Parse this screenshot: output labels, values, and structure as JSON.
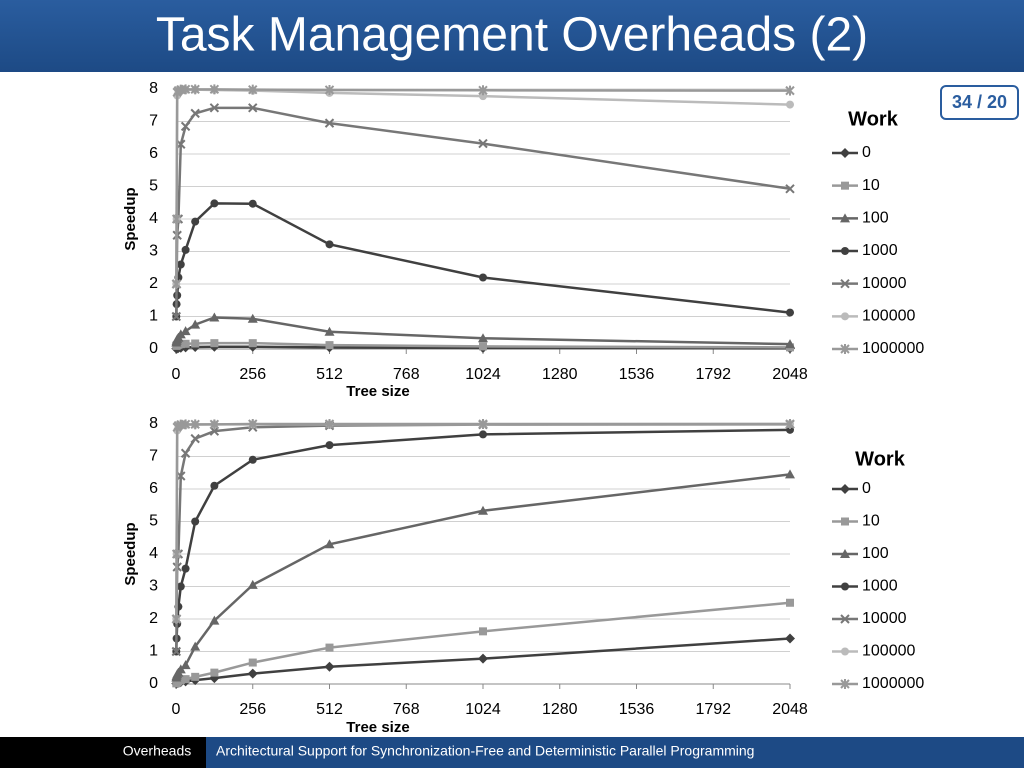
{
  "slide": {
    "title": "Task Management Overheads (2)",
    "page": "34 / 20",
    "footer_section": "Overheads",
    "footer_text": "Architectural Support for Synchronization-Free and Deterministic Parallel Programming"
  },
  "chart_data": [
    {
      "type": "line",
      "x_label": "Tree size",
      "y_label": "Speedup",
      "legend_title": "Work",
      "legend": "right",
      "grid": true,
      "x": [
        1,
        2,
        4,
        8,
        16,
        32,
        64,
        128,
        256,
        512,
        1024,
        2048
      ],
      "xlim": [
        0,
        2048
      ],
      "xticks": [
        0,
        256,
        512,
        768,
        1024,
        1280,
        1536,
        1792,
        2048
      ],
      "ylim": [
        0,
        8
      ],
      "yticks": [
        0,
        1,
        2,
        3,
        4,
        5,
        6,
        7,
        8
      ],
      "series": [
        {
          "name": "0",
          "color": "#404040",
          "marker": "diamond",
          "values": [
            0.01,
            0.01,
            0.02,
            0.03,
            0.04,
            0.05,
            0.06,
            0.07,
            0.07,
            0.05,
            0.03,
            0.02
          ]
        },
        {
          "name": "10",
          "color": "#999999",
          "marker": "square",
          "values": [
            0.1,
            0.1,
            0.12,
            0.13,
            0.15,
            0.16,
            0.17,
            0.18,
            0.18,
            0.12,
            0.08,
            0.05
          ]
        },
        {
          "name": "100",
          "color": "#666666",
          "marker": "triangle",
          "values": [
            0.2,
            0.25,
            0.3,
            0.35,
            0.45,
            0.55,
            0.75,
            0.97,
            0.93,
            0.53,
            0.33,
            0.15
          ]
        },
        {
          "name": "1000",
          "color": "#404040",
          "marker": "circle",
          "values": [
            1.0,
            1.38,
            1.65,
            2.2,
            2.6,
            3.05,
            3.92,
            4.48,
            4.47,
            3.22,
            2.2,
            1.12
          ]
        },
        {
          "name": "10000",
          "color": "#777777",
          "marker": "x",
          "values": [
            1.0,
            2.0,
            3.5,
            4.0,
            6.3,
            6.85,
            7.25,
            7.42,
            7.42,
            6.95,
            6.32,
            4.93
          ]
        },
        {
          "name": "100000",
          "color": "#bbbbbb",
          "marker": "circle",
          "values": [
            2.0,
            4.0,
            7.8,
            7.9,
            7.95,
            7.97,
            7.98,
            7.97,
            7.95,
            7.88,
            7.78,
            7.52
          ]
        },
        {
          "name": "1000000",
          "color": "#999999",
          "marker": "star",
          "values": [
            2.0,
            4.0,
            7.9,
            7.95,
            7.98,
            7.99,
            7.99,
            7.99,
            7.98,
            7.97,
            7.96,
            7.95
          ]
        }
      ]
    },
    {
      "type": "line",
      "x_label": "Tree size",
      "y_label": "Speedup",
      "legend_title": "Work",
      "legend": "right",
      "grid": true,
      "x": [
        1,
        2,
        4,
        8,
        16,
        32,
        64,
        128,
        256,
        512,
        1024,
        2048
      ],
      "xlim": [
        0,
        2048
      ],
      "xticks": [
        0,
        256,
        512,
        768,
        1024,
        1280,
        1536,
        1792,
        2048
      ],
      "ylim": [
        0,
        8
      ],
      "yticks": [
        0,
        1,
        2,
        3,
        4,
        5,
        6,
        7,
        8
      ],
      "series": [
        {
          "name": "0",
          "color": "#404040",
          "marker": "diamond",
          "values": [
            0.01,
            0.02,
            0.03,
            0.04,
            0.06,
            0.08,
            0.12,
            0.18,
            0.32,
            0.53,
            0.78,
            1.4
          ]
        },
        {
          "name": "10",
          "color": "#999999",
          "marker": "square",
          "values": [
            0.02,
            0.04,
            0.06,
            0.08,
            0.12,
            0.15,
            0.22,
            0.35,
            0.66,
            1.12,
            1.62,
            2.5
          ]
        },
        {
          "name": "100",
          "color": "#666666",
          "marker": "triangle",
          "values": [
            0.2,
            0.25,
            0.3,
            0.35,
            0.45,
            0.58,
            1.15,
            1.95,
            3.05,
            4.3,
            5.33,
            6.45
          ]
        },
        {
          "name": "1000",
          "color": "#404040",
          "marker": "circle",
          "values": [
            1.0,
            1.4,
            1.85,
            2.38,
            3.0,
            3.55,
            5.0,
            6.1,
            6.9,
            7.35,
            7.68,
            7.82
          ]
        },
        {
          "name": "10000",
          "color": "#777777",
          "marker": "x",
          "values": [
            1.0,
            2.0,
            3.6,
            4.0,
            6.4,
            7.1,
            7.55,
            7.78,
            7.9,
            7.95,
            7.98,
            7.99
          ]
        },
        {
          "name": "100000",
          "color": "#bbbbbb",
          "marker": "circle",
          "values": [
            2.0,
            4.0,
            7.8,
            7.9,
            7.95,
            7.97,
            7.98,
            7.99,
            7.99,
            7.99,
            7.99,
            8.0
          ]
        },
        {
          "name": "1000000",
          "color": "#999999",
          "marker": "star",
          "values": [
            2.0,
            4.0,
            7.9,
            7.95,
            7.98,
            7.99,
            7.99,
            7.99,
            8.0,
            8.0,
            8.0,
            8.0
          ]
        }
      ]
    }
  ]
}
